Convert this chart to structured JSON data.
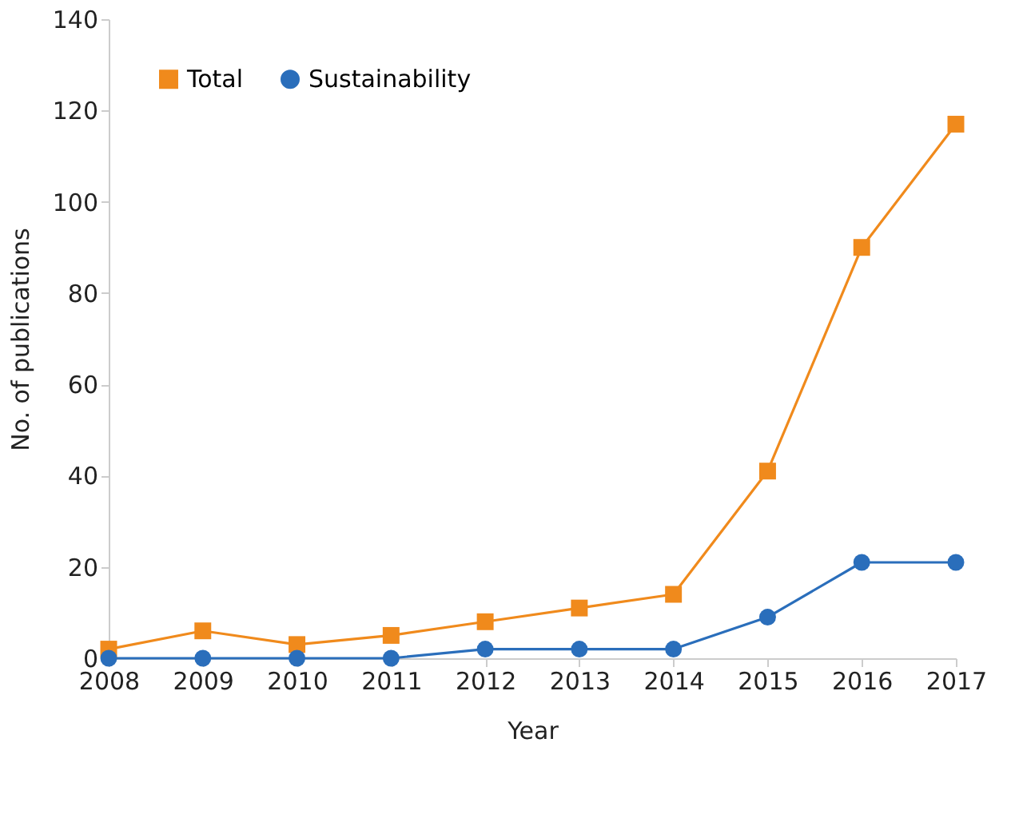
{
  "chart_data": {
    "type": "line",
    "xlabel": "Year",
    "ylabel": "No. of publications",
    "x": [
      2008,
      2009,
      2010,
      2011,
      2012,
      2013,
      2014,
      2015,
      2016,
      2017
    ],
    "series": [
      {
        "name": "Total",
        "color": "#f08a1c",
        "marker": "square",
        "values": [
          2,
          6,
          3,
          5,
          8,
          11,
          14,
          41,
          90,
          117
        ]
      },
      {
        "name": "Sustainability",
        "color": "#2a6ebb",
        "marker": "circle",
        "values": [
          0,
          0,
          0,
          0,
          2,
          2,
          2,
          9,
          21,
          21
        ]
      }
    ],
    "xlim": [
      2008,
      2017
    ],
    "xticks": [
      2008,
      2009,
      2010,
      2011,
      2012,
      2013,
      2014,
      2015,
      2016,
      2017
    ],
    "ylim": [
      0,
      140
    ],
    "yticks": [
      0,
      20,
      40,
      60,
      80,
      100,
      120,
      140
    ],
    "grid": false,
    "legend": "top left",
    "line_style": "solid"
  }
}
